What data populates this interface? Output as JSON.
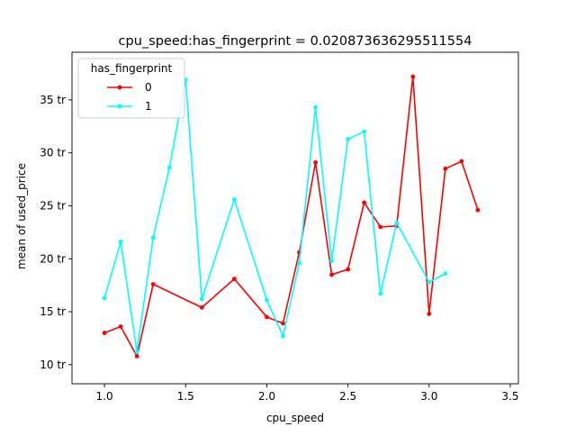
{
  "chart_data": {
    "type": "line",
    "title": "cpu_speed:has_fingerprint = 0.020873636295511554",
    "xlabel": "cpu_speed",
    "ylabel": "mean of used_price",
    "xlim": [
      0.8,
      3.55
    ],
    "ylim": [
      8.2,
      39.5
    ],
    "x_ticks": [
      1.0,
      1.5,
      2.0,
      2.5,
      3.0,
      3.5
    ],
    "x_tick_labels": [
      "1.0",
      "1.5",
      "2.0",
      "2.5",
      "3.0",
      "3.5"
    ],
    "y_ticks": [
      10,
      15,
      20,
      25,
      30,
      35
    ],
    "y_tick_labels": [
      "10 tr",
      "15 tr",
      "20 tr",
      "25 tr",
      "30 tr",
      "35 tr"
    ],
    "legend": {
      "title": "has_fingerprint",
      "position": "upper-left"
    },
    "grid": false,
    "series": [
      {
        "name": "0",
        "color": "#ff0000",
        "x": [
          1.0,
          1.1,
          1.2,
          1.3,
          1.6,
          1.8,
          2.0,
          2.1,
          2.2,
          2.3,
          2.4,
          2.5,
          2.6,
          2.7,
          2.8,
          2.9,
          3.0,
          3.1,
          3.2,
          3.3
        ],
        "y": [
          13.0,
          13.6,
          10.8,
          17.6,
          15.4,
          18.1,
          14.5,
          13.9,
          20.6,
          29.1,
          18.5,
          19.0,
          25.3,
          23.0,
          23.1,
          37.2,
          14.8,
          28.5,
          29.2,
          24.6
        ]
      },
      {
        "name": "1",
        "color": "#00ffff",
        "x": [
          1.0,
          1.1,
          1.2,
          1.3,
          1.4,
          1.5,
          1.6,
          1.8,
          2.0,
          2.1,
          2.2,
          2.3,
          2.4,
          2.5,
          2.6,
          2.7,
          2.8,
          3.0,
          3.1
        ],
        "y": [
          16.3,
          21.6,
          11.2,
          22.0,
          28.6,
          36.9,
          16.2,
          25.6,
          16.1,
          12.7,
          19.6,
          34.3,
          19.8,
          31.3,
          32.0,
          16.7,
          23.4,
          17.8,
          18.6
        ]
      }
    ]
  }
}
